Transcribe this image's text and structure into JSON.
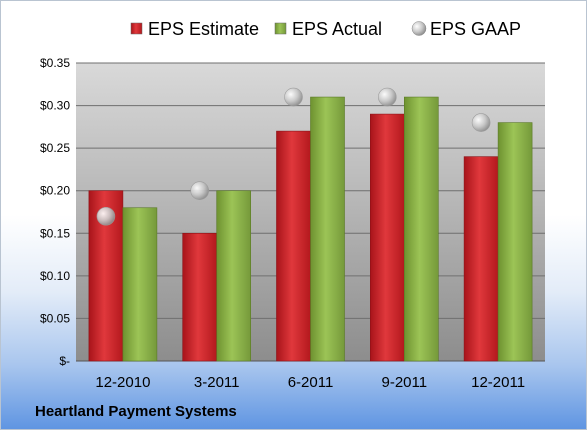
{
  "chart_data": {
    "type": "bar",
    "title": "",
    "xlabel": "",
    "ylabel": "",
    "categories": [
      "12-2010",
      "3-2011",
      "6-2011",
      "9-2011",
      "12-2011"
    ],
    "series": [
      {
        "name": "EPS Estimate",
        "kind": "bar",
        "color": "#cc1f26",
        "values": [
          0.2,
          0.15,
          0.27,
          0.29,
          0.24
        ]
      },
      {
        "name": "EPS Actual",
        "kind": "bar",
        "color": "#86ad3f",
        "values": [
          0.18,
          0.2,
          0.31,
          0.31,
          0.28
        ]
      },
      {
        "name": "EPS GAAP",
        "kind": "marker",
        "color": "#b8b8b8",
        "values": [
          0.17,
          0.2,
          0.31,
          0.31,
          0.28
        ]
      }
    ],
    "ylim": [
      0,
      0.35
    ],
    "yticks": [
      0,
      0.05,
      0.1,
      0.15,
      0.2,
      0.25,
      0.3,
      0.35
    ],
    "ytick_labels": [
      "$-",
      "$0.05",
      "$0.10",
      "$0.15",
      "$0.20",
      "$0.25",
      "$0.30",
      "$0.35"
    ],
    "grid": true,
    "legend_position": "top"
  },
  "footer": {
    "company": "Heartland Payment Systems"
  }
}
